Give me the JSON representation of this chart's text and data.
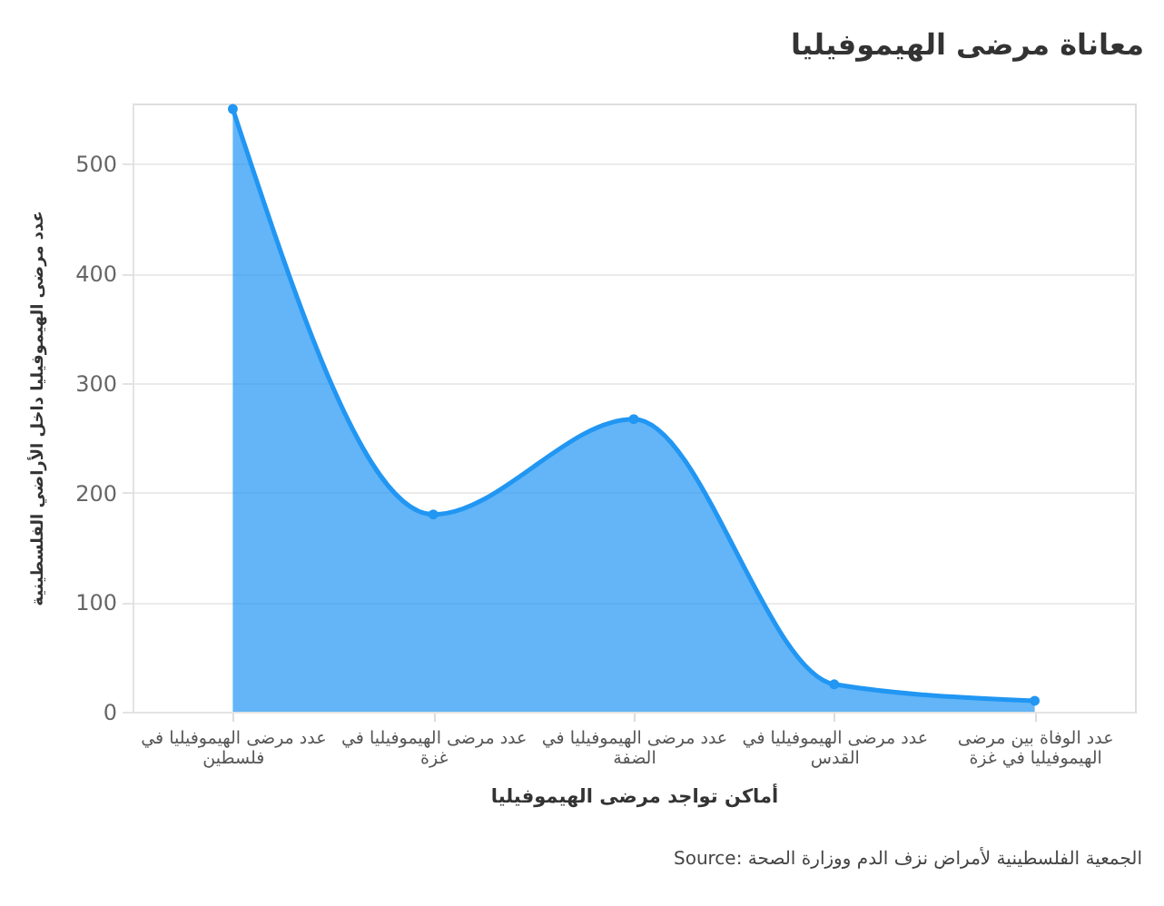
{
  "chart_data": {
    "type": "area",
    "title": "معاناة مرضى الهيموفيليا",
    "xlabel": "أماكن تواجد مرضى الهيموفيليا",
    "ylabel": "عدد مرضى الهيموفيليا داخل الأراضي الفلسطينية",
    "categories": [
      "عدد مرضى الهيموفيليا في فلسطين",
      "عدد مرضى الهيموفيليا في غزة",
      "عدد مرضى الهيموفيليا في الضفة",
      "عدد مرضى الهيموفيليا في القدس",
      "عدد الوفاة بين مرضى الهيموفيليا في غزة"
    ],
    "series": [
      {
        "color": "#2196f3",
        "values": [
          550,
          180,
          267,
          25,
          10
        ]
      }
    ],
    "ylim": [
      0,
      555
    ],
    "yticks": [
      0,
      100,
      200,
      300,
      400,
      500
    ],
    "grid": "y",
    "marker": "circle",
    "annotations": [
      "Source: الجمعية الفلسطينية لأمراض نزف الدم ووزارة الصحة"
    ]
  }
}
